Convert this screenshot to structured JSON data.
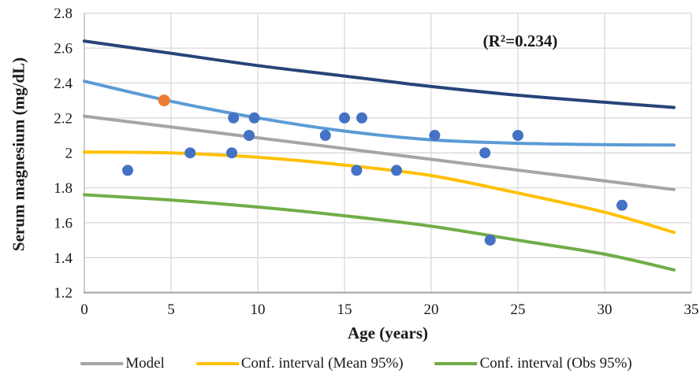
{
  "chart_data": {
    "type": "scatter",
    "title": "",
    "xlabel": "Age (years)",
    "ylabel": "Serum magnesium (mg/dL)",
    "annotation": "(R²=0.234)",
    "xlim": [
      0,
      35
    ],
    "ylim": [
      1.2,
      2.8
    ],
    "x_ticks": [
      0,
      5,
      10,
      15,
      20,
      25,
      30,
      35
    ],
    "y_ticks": [
      2.8,
      2.6,
      2.4,
      2.2,
      2,
      1.8,
      1.6,
      1.4,
      1.2
    ],
    "y_tick_labels": [
      "2.8",
      "2.6",
      "2.4",
      "2.2",
      "2",
      "1.8",
      "1.6",
      "1.4",
      "1.2"
    ],
    "grid": true,
    "legend_position": "bottom",
    "scatter_points": {
      "blue": [
        [
          2.5,
          1.9
        ],
        [
          6.1,
          2.0
        ],
        [
          8.5,
          2.0
        ],
        [
          8.6,
          2.2
        ],
        [
          9.5,
          2.1
        ],
        [
          9.8,
          2.2
        ],
        [
          13.9,
          2.1
        ],
        [
          15.0,
          2.2
        ],
        [
          15.7,
          1.9
        ],
        [
          16.0,
          2.2
        ],
        [
          18.0,
          1.9
        ],
        [
          20.2,
          2.1
        ],
        [
          23.1,
          2.0
        ],
        [
          23.4,
          1.5
        ],
        [
          25.0,
          2.1
        ],
        [
          31.0,
          1.7
        ]
      ],
      "orange": [
        [
          4.6,
          2.3
        ]
      ]
    },
    "series": [
      {
        "name": "conf-interval-obs-95-upper",
        "color": "#264478",
        "points": [
          [
            0,
            2.64
          ],
          [
            5,
            2.57
          ],
          [
            10,
            2.5
          ],
          [
            15,
            2.44
          ],
          [
            20,
            2.38
          ],
          [
            25,
            2.33
          ],
          [
            30,
            2.29
          ],
          [
            34,
            2.26
          ]
        ]
      },
      {
        "name": "conf-interval-mean-95-upper",
        "color": "#5B9BD5",
        "points": [
          [
            0,
            2.41
          ],
          [
            5,
            2.295
          ],
          [
            10,
            2.2
          ],
          [
            15,
            2.125
          ],
          [
            20,
            2.075
          ],
          [
            25,
            2.055
          ],
          [
            30,
            2.047
          ],
          [
            34,
            2.045
          ]
        ]
      },
      {
        "name": "model",
        "color": "#A5A5A5",
        "points": [
          [
            0,
            2.21
          ],
          [
            17,
            2.0
          ],
          [
            34,
            1.79
          ]
        ]
      },
      {
        "name": "conf-interval-mean-95-lower",
        "color": "#FFC000",
        "points": [
          [
            0,
            2.005
          ],
          [
            5,
            2.0
          ],
          [
            10,
            1.975
          ],
          [
            15,
            1.93
          ],
          [
            20,
            1.87
          ],
          [
            25,
            1.77
          ],
          [
            30,
            1.66
          ],
          [
            34,
            1.545
          ]
        ]
      },
      {
        "name": "conf-interval-obs-95-lower",
        "color": "#70AD47",
        "points": [
          [
            0,
            1.76
          ],
          [
            5,
            1.73
          ],
          [
            10,
            1.69
          ],
          [
            15,
            1.64
          ],
          [
            20,
            1.58
          ],
          [
            25,
            1.5
          ],
          [
            30,
            1.42
          ],
          [
            34,
            1.33
          ]
        ]
      }
    ],
    "legend": [
      {
        "label": "Model",
        "color": "#A5A5A5"
      },
      {
        "label": "Conf. interval (Mean 95%)",
        "color": "#FFC000"
      },
      {
        "label": "Conf. interval (Obs 95%)",
        "color": "#70AD47"
      }
    ],
    "colors": {
      "marker_blue": "#4472C4",
      "marker_orange": "#ED7D31",
      "gridline": "#D9D9D9",
      "axis_bottom": "#A6A6A6",
      "axis_left": "#C2C2C2",
      "tick_text": "#1a1a1a"
    }
  }
}
